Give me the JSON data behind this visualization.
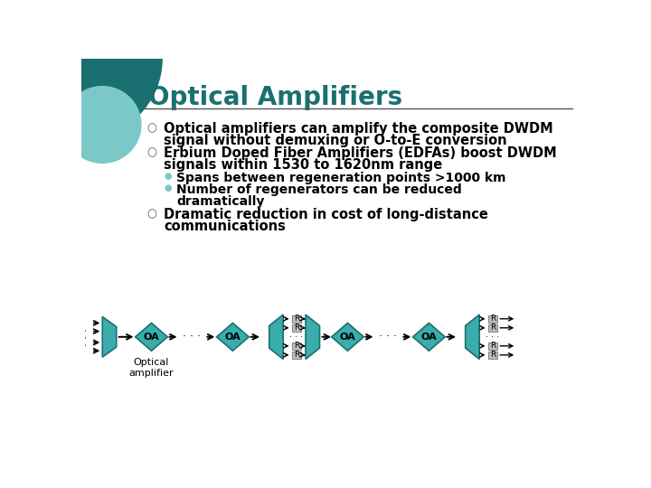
{
  "title": "Optical Amplifiers",
  "title_color": "#1A7070",
  "bg_color": "#FFFFFF",
  "teal_color": "#3AACAC",
  "teal_dark": "#1A7070",
  "teal_light": "#7AC8C8",
  "gray_box_color": "#BBBBBB",
  "text_color": "#000000",
  "bullet1_line1": "Optical amplifiers can amplify the composite DWDM",
  "bullet1_line2": "signal without demuxing or O-to-E conversion",
  "bullet2_line1": "Erbium Doped Fiber Amplifiers (EDFAs) boost DWDM",
  "bullet2_line2": "signals within 1530 to 1620nm range",
  "sub1": "Spans between regeneration points >1000 km",
  "sub2_line1": "Number of regenerators can be reduced",
  "sub2_line2": "dramatically",
  "bullet3_line1": "Dramatic reduction in cost of long-distance",
  "bullet3_line2": "communications",
  "label_oa": "OA",
  "label_optical": "Optical\namplifier",
  "label_r": "R"
}
